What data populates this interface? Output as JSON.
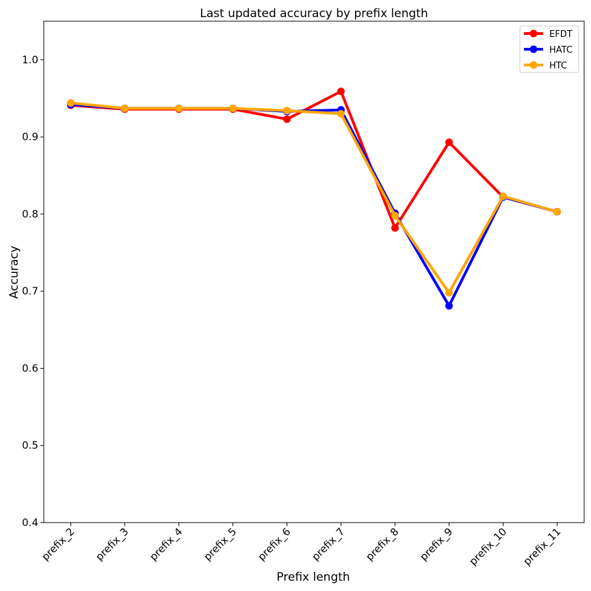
{
  "chart_data": {
    "type": "line",
    "title": "Last updated accuracy by prefix length",
    "xlabel": "Prefix length",
    "ylabel": "Accuracy",
    "categories": [
      "prefix_2",
      "prefix_3",
      "prefix_4",
      "prefix_5",
      "prefix_6",
      "prefix_7",
      "prefix_8",
      "prefix_9",
      "prefix_10",
      "prefix_11"
    ],
    "ylim": [
      0.4,
      1.05
    ],
    "yticks": [
      "0.4",
      "0.5",
      "0.6",
      "0.7",
      "0.8",
      "0.9",
      "1.0"
    ],
    "grid": false,
    "legend_position": "top-right",
    "series": [
      {
        "name": "EFDT",
        "color": "#ff0000",
        "values": [
          0.941,
          0.936,
          0.936,
          0.936,
          0.923,
          0.959,
          0.782,
          0.893,
          0.822,
          0.803
        ]
      },
      {
        "name": "HATC",
        "color": "#0000ff",
        "values": [
          0.942,
          0.937,
          0.937,
          0.937,
          0.933,
          0.935,
          0.801,
          0.681,
          0.822,
          0.803
        ]
      },
      {
        "name": "HTC",
        "color": "#ffa500",
        "values": [
          0.944,
          0.937,
          0.937,
          0.937,
          0.934,
          0.93,
          0.798,
          0.698,
          0.823,
          0.803
        ]
      }
    ]
  }
}
